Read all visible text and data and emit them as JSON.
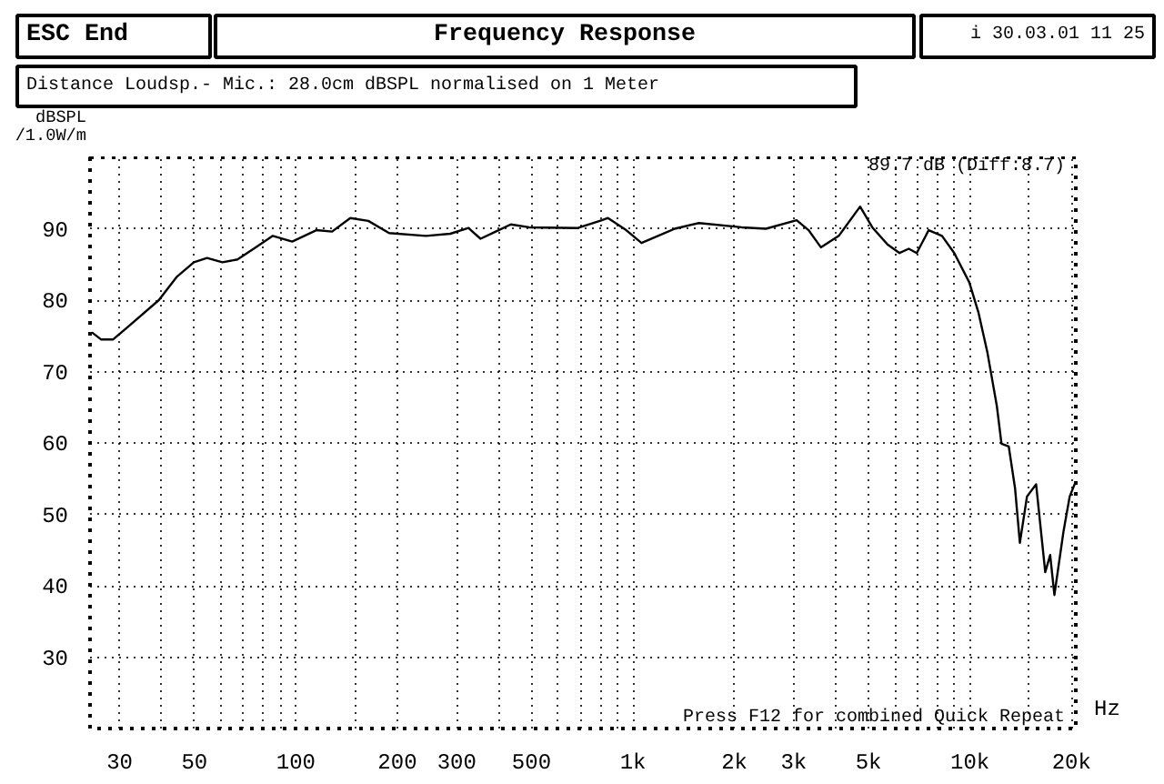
{
  "chart_data": {
    "type": "line",
    "title": "Frequency Response",
    "subtitle": "Distance Loudsp.- Mic.: 28.0cm dBSPL normalised on 1 Meter",
    "ylabel": "dBSPL /1.0W/m",
    "annotations": [
      "ESC End",
      "i 30.03.01 11 25",
      "89.7 dB (Diff:8.7)",
      "Press F12 for combined Quick Repeat"
    ],
    "log": "x",
    "grid": true,
    "marker": "none",
    "line_style": "solid",
    "xlim": [
      24.5,
      20600
    ],
    "ylim": [
      20,
      100
    ],
    "xticks": [
      30,
      {
        "value": 40,
        "label": null
      },
      50,
      {
        "value": 60,
        "label": null
      },
      {
        "value": 70,
        "label": null
      },
      {
        "value": 80,
        "label": null
      },
      {
        "value": 90,
        "label": null
      },
      100,
      {
        "value": 150,
        "label": null
      },
      200,
      300,
      {
        "value": 400,
        "label": null
      },
      500,
      {
        "value": 600,
        "label": null
      },
      {
        "value": 700,
        "label": null
      },
      {
        "value": 800,
        "label": null
      },
      {
        "value": 900,
        "label": null
      },
      {
        "value": 1000,
        "label": "1k"
      },
      {
        "value": 2000,
        "label": "2k"
      },
      {
        "value": 3000,
        "label": "3k"
      },
      {
        "value": 4000,
        "label": null
      },
      {
        "value": 5000,
        "label": "5k"
      },
      {
        "value": 6000,
        "label": null
      },
      {
        "value": 7000,
        "label": null
      },
      {
        "value": 8000,
        "label": null
      },
      {
        "value": 9000,
        "label": null
      },
      {
        "value": 10000,
        "label": "10k"
      },
      {
        "value": 15000,
        "label": null
      },
      {
        "value": 20000,
        "label": "20k"
      }
    ],
    "xlabel": "Hz",
    "yticks": [
      30,
      40,
      50,
      60,
      70,
      80,
      90
    ],
    "x": [
      24.8,
      26.4,
      28.7,
      31.8,
      39.2,
      44.4,
      49.8,
      54.5,
      60.5,
      67.1,
      76,
      85.4,
      97.5,
      115,
      128,
      145,
      164,
      189,
      243,
      287,
      325,
      353,
      384,
      434,
      492,
      686,
      809,
      843,
      955,
      1060,
      1330,
      1570,
      2100,
      2480,
      3060,
      3320,
      3610,
      4080,
      4720,
      5130,
      5690,
      6180,
      6580,
      6950,
      7540,
      8260,
      8980,
      9950,
      10590,
      11270,
      12010,
      12400,
      13030,
      13600,
      14060,
      14760,
      15710,
      16720,
      17290,
      17800,
      18940,
      19760,
      20590
    ],
    "series": [
      {
        "color": "#000000",
        "values": [
          75.5,
          74.5,
          74.5,
          76.3,
          80.0,
          83.3,
          85.3,
          85.9,
          85.3,
          85.7,
          87.4,
          89.0,
          88.2,
          89.8,
          89.6,
          91.5,
          91.1,
          89.4,
          89.0,
          89.3,
          90.1,
          88.6,
          89.4,
          90.6,
          90.2,
          90.1,
          91.2,
          91.5,
          89.8,
          88.0,
          90.0,
          90.8,
          90.2,
          90.0,
          91.2,
          89.8,
          87.4,
          89.0,
          93.1,
          90.2,
          87.8,
          86.6,
          87.2,
          86.6,
          89.8,
          89.0,
          86.6,
          82.5,
          78.3,
          72.6,
          65.2,
          59.9,
          59.5,
          53.7,
          46.0,
          52.5,
          54.2,
          41.9,
          44.3,
          38.7,
          47.6,
          52.5,
          54.6
        ]
      }
    ]
  }
}
